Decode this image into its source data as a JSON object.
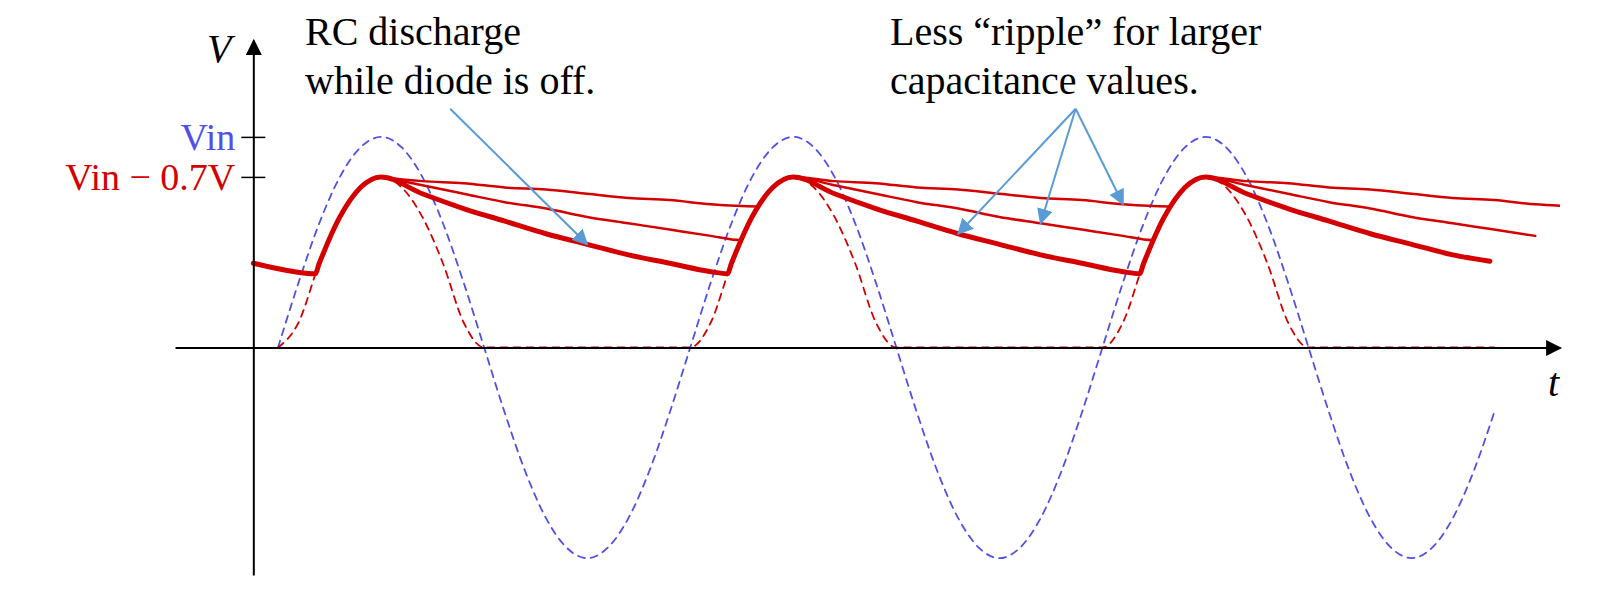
{
  "chart_data": {
    "type": "line",
    "xlabel": "t",
    "ylabel": "V",
    "xlim": [
      -0.19,
      3.17
    ],
    "ylim": [
      -1.08,
      1.46
    ],
    "yticks": [
      {
        "value": 1,
        "label": "Vin"
      },
      {
        "value": 0.81,
        "label": "Vin − 0.7V"
      }
    ],
    "tick_labels": "y",
    "grid": false,
    "annotations": [
      {
        "text": "RC discharge while diode is off."
      },
      {
        "text": "Less “ripple” for larger capacitance values."
      }
    ],
    "series": [
      {
        "color": "#5050e8",
        "line_style": "dashed",
        "x": [
          0.06,
          0.11,
          0.16,
          0.21,
          0.26,
          0.31,
          0.36,
          0.41,
          0.46,
          0.51,
          0.56,
          0.61,
          0.66,
          0.71,
          0.76,
          0.81,
          0.86,
          0.91,
          0.96,
          1.01,
          1.06,
          1.11,
          1.16,
          1.21,
          1.26,
          1.31,
          1.36,
          1.41,
          1.46,
          1.51,
          1.56,
          1.61,
          1.66,
          1.71,
          1.76,
          1.81,
          1.86,
          1.91,
          1.96,
          2.01,
          2.06,
          2.11,
          2.16,
          2.21,
          2.26,
          2.31,
          2.36,
          2.41,
          2.46,
          2.51,
          2.56,
          2.61,
          2.66,
          2.71,
          2.76,
          2.81,
          2.86,
          2.91,
          2.96,
          3.01
        ],
        "values": [
          0,
          0.31,
          0.59,
          0.81,
          0.95,
          1,
          0.95,
          0.81,
          0.59,
          0.31,
          0,
          -0.31,
          -0.59,
          -0.81,
          -0.95,
          -1,
          -0.95,
          -0.81,
          -0.59,
          -0.31,
          0,
          0.31,
          0.59,
          0.81,
          0.95,
          1,
          0.95,
          0.81,
          0.59,
          0.31,
          0,
          -0.31,
          -0.59,
          -0.81,
          -0.95,
          -1,
          -0.95,
          -0.81,
          -0.59,
          -0.31,
          0,
          0.31,
          0.59,
          0.81,
          0.95,
          1,
          0.95,
          0.81,
          0.59,
          0.31,
          0,
          -0.31,
          -0.59,
          -0.81,
          -0.95,
          -1,
          -0.95,
          -0.81,
          -0.59,
          -0.31
        ]
      },
      {
        "color": "#d40000",
        "line_style": "dashed",
        "x": [
          0.06,
          0.11,
          0.16,
          0.21,
          0.26,
          0.31,
          0.36,
          0.41,
          0.46,
          0.51,
          0.56,
          0.61,
          0.66,
          0.71,
          0.76,
          0.81,
          0.86,
          0.91,
          0.96,
          1.01,
          1.06,
          1.11,
          1.16,
          1.21,
          1.26,
          1.31,
          1.36,
          1.41,
          1.46,
          1.51,
          1.56,
          1.61,
          1.66,
          1.71,
          1.76,
          1.81,
          1.86,
          1.91,
          1.96,
          2.01,
          2.06,
          2.11,
          2.16,
          2.21,
          2.26,
          2.31,
          2.36,
          2.41,
          2.46,
          2.51,
          2.56,
          2.61,
          2.66,
          2.71,
          2.76,
          2.81,
          2.86,
          2.91,
          2.96,
          3.01
        ],
        "values": [
          0,
          0.12,
          0.4,
          0.62,
          0.76,
          0.81,
          0.76,
          0.62,
          0.4,
          0.12,
          0,
          0,
          0,
          0,
          0,
          0,
          0,
          0,
          0,
          0,
          0,
          0.12,
          0.4,
          0.62,
          0.76,
          0.81,
          0.76,
          0.62,
          0.4,
          0.12,
          0,
          0,
          0,
          0,
          0,
          0,
          0,
          0,
          0,
          0,
          0,
          0.12,
          0.4,
          0.62,
          0.76,
          0.81,
          0.76,
          0.62,
          0.4,
          0.12,
          0,
          0,
          0,
          0,
          0,
          0,
          0,
          0,
          0,
          0
        ]
      },
      {
        "color": "#d40000",
        "line_style": "solid",
        "x": [
          0,
          0.1,
          0.15,
          0.16,
          0.21,
          0.26,
          0.31,
          0.41,
          0.51,
          0.61,
          0.71,
          0.81,
          0.91,
          1.01,
          1.11,
          1.15,
          1.16,
          1.21,
          1.26,
          1.31,
          1.41,
          1.51,
          1.61,
          1.71,
          1.81,
          1.91,
          2.01,
          2.11,
          2.15,
          2.16,
          2.21,
          2.26,
          2.31,
          2.41,
          2.51,
          2.61,
          2.71,
          2.81,
          2.91,
          3.0
        ],
        "values": [
          0.4,
          0.36,
          0.35,
          0.4,
          0.62,
          0.76,
          0.81,
          0.73,
          0.66,
          0.6,
          0.54,
          0.49,
          0.44,
          0.4,
          0.36,
          0.35,
          0.4,
          0.62,
          0.76,
          0.81,
          0.73,
          0.66,
          0.6,
          0.54,
          0.49,
          0.44,
          0.4,
          0.36,
          0.35,
          0.4,
          0.62,
          0.76,
          0.81,
          0.73,
          0.66,
          0.6,
          0.54,
          0.49,
          0.44,
          0.41
        ]
      },
      {
        "color": "#d40000",
        "line_style": "solid",
        "x": [
          0.31,
          0.41,
          0.51,
          0.61,
          0.71,
          0.81,
          0.91,
          1.01,
          1.11,
          1.18,
          1.21,
          1.26,
          1.31,
          1.41,
          1.51,
          1.61,
          1.71,
          1.81,
          1.91,
          2.01,
          2.11,
          2.18,
          2.21,
          2.26,
          2.31,
          2.41,
          2.51,
          2.61,
          2.71,
          2.81,
          2.91,
          3.01,
          3.11
        ],
        "values": [
          0.81,
          0.77,
          0.73,
          0.69,
          0.66,
          0.62,
          0.59,
          0.56,
          0.53,
          0.51,
          0.62,
          0.76,
          0.81,
          0.77,
          0.73,
          0.69,
          0.66,
          0.62,
          0.59,
          0.56,
          0.53,
          0.51,
          0.62,
          0.76,
          0.81,
          0.77,
          0.73,
          0.69,
          0.66,
          0.62,
          0.59,
          0.56,
          0.53
        ]
      },
      {
        "color": "#d40000",
        "line_style": "solid",
        "x": [
          0.31,
          0.41,
          0.51,
          0.61,
          0.71,
          0.81,
          0.91,
          1.01,
          1.11,
          1.22,
          1.26,
          1.31,
          1.41,
          1.51,
          1.61,
          1.71,
          1.81,
          1.91,
          2.01,
          2.11,
          2.22,
          2.26,
          2.31,
          2.41,
          2.51,
          2.61,
          2.71,
          2.81,
          2.91,
          3.01,
          3.11,
          3.21
        ],
        "values": [
          0.81,
          0.79,
          0.78,
          0.76,
          0.75,
          0.73,
          0.71,
          0.7,
          0.68,
          0.67,
          0.76,
          0.81,
          0.79,
          0.78,
          0.76,
          0.75,
          0.73,
          0.71,
          0.7,
          0.68,
          0.67,
          0.76,
          0.81,
          0.79,
          0.78,
          0.76,
          0.75,
          0.73,
          0.71,
          0.7,
          0.68,
          0.67
        ]
      }
    ]
  }
}
